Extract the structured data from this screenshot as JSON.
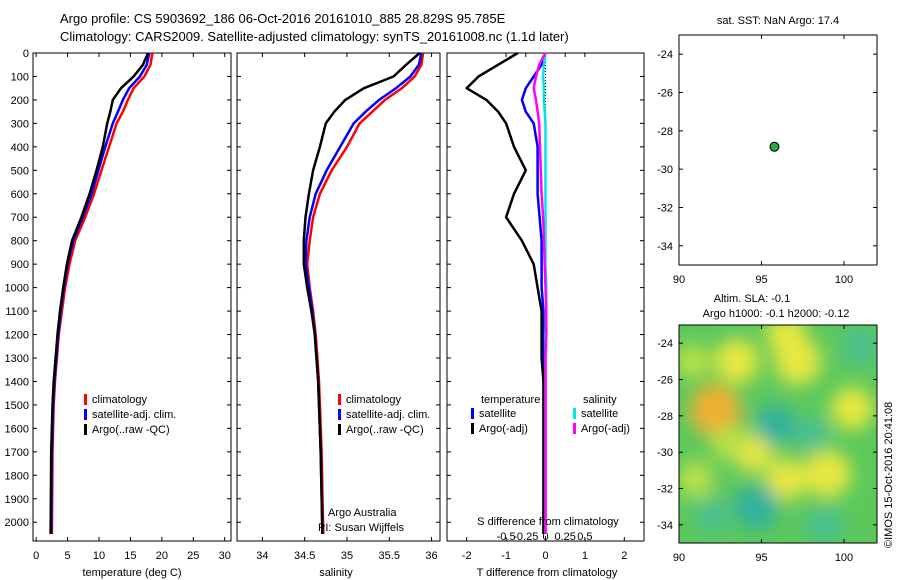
{
  "titles": {
    "line1": "Argo profile: CS 5903692_186 06-Oct-2016 20161010_885 28.829S 95.785E",
    "line2": "Climatology: CARS2009. Satellite-adjusted climatology: synTS_20161008.nc (1.1d later)"
  },
  "colors": {
    "climatology": "#ff0000",
    "satellite": "#0000ff",
    "argo": "#000000",
    "sat_salinity": "#00e5e5",
    "argo_salinity": "#ff00ff"
  },
  "chart_data": [
    {
      "type": "line",
      "id": "temperature",
      "xlabel": "temperature (deg C)",
      "xlim": [
        -0.5,
        31
      ],
      "xticks": [
        0,
        5,
        10,
        15,
        20,
        25,
        30
      ],
      "ylim": [
        0,
        2080
      ],
      "yticks": [
        0,
        100,
        200,
        300,
        400,
        500,
        600,
        700,
        800,
        900,
        1000,
        1100,
        1200,
        1300,
        1400,
        1500,
        1600,
        1700,
        1800,
        1900,
        2000
      ],
      "legend": [
        "climatology",
        "satellite-adj. clim.",
        "Argo(..raw -QC)"
      ],
      "legend_position": "lower-center",
      "series": [
        {
          "name": "climatology",
          "color": "#ff0000",
          "x": [
            18.5,
            18.2,
            17.2,
            15.5,
            14.6,
            13.8,
            12.8,
            11.6,
            10.4,
            9.2,
            7.8,
            6.2,
            5.3,
            4.6,
            4.1,
            3.6,
            3.3,
            3.0,
            2.8,
            2.6,
            2.5
          ],
          "y": [
            0,
            50,
            100,
            150,
            200,
            250,
            300,
            400,
            500,
            600,
            700,
            800,
            900,
            1000,
            1100,
            1200,
            1300,
            1400,
            1500,
            1700,
            2050
          ]
        },
        {
          "name": "satellite-adj. clim.",
          "color": "#0000ff",
          "x": [
            18.0,
            17.6,
            16.5,
            14.8,
            13.8,
            13.0,
            12.2,
            11.0,
            9.9,
            8.8,
            7.4,
            5.9,
            5.0,
            4.4,
            3.9,
            3.5,
            3.2,
            2.9,
            2.7,
            2.5,
            2.4
          ],
          "y": [
            0,
            50,
            100,
            150,
            200,
            250,
            300,
            400,
            500,
            600,
            700,
            800,
            900,
            1000,
            1100,
            1200,
            1300,
            1400,
            1500,
            1700,
            2050
          ]
        },
        {
          "name": "Argo(..raw -QC)",
          "color": "#000000",
          "x": [
            17.8,
            17.0,
            15.5,
            13.5,
            12.2,
            11.8,
            11.3,
            10.6,
            9.6,
            8.5,
            7.2,
            5.7,
            4.9,
            4.3,
            3.8,
            3.4,
            3.1,
            2.8,
            2.6,
            2.4,
            2.3
          ],
          "y": [
            0,
            50,
            100,
            150,
            200,
            250,
            300,
            400,
            500,
            600,
            700,
            800,
            900,
            1000,
            1100,
            1200,
            1300,
            1400,
            1500,
            1700,
            2050
          ]
        }
      ]
    },
    {
      "type": "line",
      "id": "salinity",
      "xlabel": "salinity",
      "xlim": [
        33.7,
        36.1
      ],
      "xticks": [
        34,
        34.5,
        35,
        35.5,
        36
      ],
      "ylim": [
        0,
        2080
      ],
      "legend": [
        "climatology",
        "satellite-adj. clim.",
        "Argo(..raw -QC)"
      ],
      "legend_position": "lower-center",
      "annotation": [
        "Argo Australia",
        "PI: Susan Wijffels"
      ],
      "series": [
        {
          "name": "climatology",
          "color": "#ff0000",
          "x": [
            35.9,
            35.88,
            35.8,
            35.65,
            35.45,
            35.3,
            35.15,
            35.0,
            34.82,
            34.68,
            34.6,
            34.56,
            34.53,
            34.56,
            34.6,
            34.63,
            34.65,
            34.67,
            34.68,
            34.7,
            34.72
          ],
          "y": [
            0,
            50,
            100,
            150,
            200,
            250,
            300,
            400,
            500,
            600,
            700,
            800,
            900,
            1000,
            1100,
            1200,
            1300,
            1400,
            1500,
            1700,
            2050
          ]
        },
        {
          "name": "satellite-adj. clim.",
          "color": "#0000ff",
          "x": [
            35.88,
            35.85,
            35.75,
            35.58,
            35.38,
            35.22,
            35.08,
            34.92,
            34.76,
            34.63,
            34.56,
            34.52,
            34.51,
            34.55,
            34.59,
            34.62,
            34.64,
            34.66,
            34.67,
            34.69,
            34.71
          ],
          "y": [
            0,
            50,
            100,
            150,
            200,
            250,
            300,
            400,
            500,
            600,
            700,
            800,
            900,
            1000,
            1100,
            1200,
            1300,
            1400,
            1500,
            1700,
            2050
          ]
        },
        {
          "name": "Argo(..raw -QC)",
          "color": "#000000",
          "x": [
            35.86,
            35.7,
            35.55,
            35.2,
            34.98,
            34.85,
            34.75,
            34.68,
            34.6,
            34.55,
            34.51,
            34.49,
            34.49,
            34.53,
            34.58,
            34.62,
            34.64,
            34.66,
            34.67,
            34.69,
            34.71
          ],
          "y": [
            0,
            50,
            100,
            150,
            200,
            250,
            300,
            400,
            500,
            600,
            700,
            800,
            900,
            1000,
            1100,
            1200,
            1300,
            1400,
            1500,
            1700,
            2050
          ]
        }
      ]
    },
    {
      "type": "line",
      "id": "differences",
      "xlabel": "T difference from climatology",
      "xlabel_top": "S difference from climatology",
      "xlim": [
        -2.5,
        2.5
      ],
      "xticks": [
        -2,
        -1,
        0,
        1,
        2
      ],
      "s_ticks": [
        -0.5,
        -0.25,
        0,
        0.25,
        0.5
      ],
      "s_tick_labels": [
        "-0.5",
        "-0.25",
        "0",
        "0.25",
        "0.5"
      ],
      "ylim": [
        0,
        2080
      ],
      "legend_temperature": {
        "title": "temperature",
        "items": [
          "satellite",
          "Argo(-adj)"
        ]
      },
      "legend_salinity": {
        "title": "salinity",
        "items": [
          "satellite",
          "Argo(-adj)"
        ]
      },
      "series": [
        {
          "name": "temperature satellite",
          "color": "#0000ff",
          "x": [
            0,
            -0.1,
            -0.3,
            -0.5,
            -0.6,
            -0.5,
            -0.3,
            -0.2,
            -0.2,
            -0.2,
            -0.15,
            -0.1,
            -0.1,
            -0.1,
            -0.05,
            -0.05,
            -0.05,
            -0.05,
            -0.05,
            -0.05,
            -0.05
          ],
          "y": [
            0,
            50,
            100,
            150,
            200,
            250,
            300,
            400,
            500,
            600,
            700,
            800,
            900,
            1000,
            1100,
            1200,
            1300,
            1400,
            1500,
            1700,
            2050
          ]
        },
        {
          "name": "temperature Argo(-adj)",
          "color": "#000000",
          "x": [
            -0.7,
            -1.2,
            -1.7,
            -2.0,
            -1.5,
            -1.2,
            -1.0,
            -0.8,
            -0.5,
            -0.8,
            -1.0,
            -0.6,
            -0.3,
            -0.2,
            -0.1,
            -0.1,
            -0.1,
            -0.05,
            -0.05,
            -0.05,
            -0.05
          ],
          "y": [
            0,
            50,
            100,
            150,
            200,
            250,
            300,
            400,
            500,
            600,
            700,
            800,
            900,
            1000,
            1100,
            1200,
            1300,
            1400,
            1500,
            1700,
            2050
          ]
        },
        {
          "name": "salinity satellite",
          "color": "#00e5e5",
          "x": [
            0.0,
            -0.02,
            -0.03,
            -0.02,
            -0.02,
            -0.01,
            0.0,
            0.0,
            0.0,
            0.0,
            0.0,
            0.0,
            0.0,
            0.01,
            0.01,
            0.0,
            0.0,
            0.0,
            0.0,
            0.0,
            0.0
          ],
          "y": [
            0,
            50,
            100,
            150,
            200,
            250,
            300,
            400,
            500,
            600,
            700,
            800,
            900,
            1000,
            1100,
            1200,
            1300,
            1400,
            1500,
            1700,
            2050
          ]
        },
        {
          "name": "salinity Argo(-adj)",
          "color": "#ff00ff",
          "x": [
            0.0,
            -0.08,
            -0.12,
            -0.15,
            -0.12,
            -0.1,
            -0.08,
            -0.07,
            -0.06,
            -0.05,
            -0.03,
            -0.02,
            -0.01,
            0.0,
            0.01,
            0.01,
            0.0,
            0.0,
            0.0,
            0.0,
            0.0
          ],
          "y": [
            0,
            50,
            100,
            150,
            200,
            250,
            300,
            400,
            500,
            600,
            700,
            800,
            900,
            1000,
            1100,
            1200,
            1300,
            1400,
            1500,
            1700,
            2050
          ]
        }
      ]
    },
    {
      "type": "scatter",
      "id": "sst-map",
      "title": "sat. SST: NaN Argo: 17.4",
      "xlim": [
        90,
        102
      ],
      "ylim": [
        -35,
        -23
      ],
      "xticks": [
        90,
        95,
        100
      ],
      "yticks": [
        -24,
        -26,
        -28,
        -30,
        -32,
        -34
      ],
      "points": [
        {
          "x": 95.785,
          "y": -28.829,
          "color": "#22aa44"
        }
      ]
    },
    {
      "type": "heatmap",
      "id": "sla-map",
      "title_line1": "Altim. SLA: -0.1",
      "title_line2": "Argo h1000: -0.1 h2000: -0.12",
      "xlim": [
        90,
        102
      ],
      "ylim": [
        -35,
        -23
      ],
      "xticks": [
        90,
        95,
        100
      ],
      "yticks": [
        -24,
        -26,
        -28,
        -30,
        -32,
        -34
      ],
      "blobs": [
        {
          "x": 92.2,
          "y": -27.7,
          "v": 1.0
        },
        {
          "x": 93.5,
          "y": -25.0,
          "v": 0.7
        },
        {
          "x": 97.2,
          "y": -25.0,
          "v": 0.8
        },
        {
          "x": 99.0,
          "y": -31.2,
          "v": 0.8
        },
        {
          "x": 96.5,
          "y": -31.5,
          "v": 0.55
        },
        {
          "x": 100.5,
          "y": -27.6,
          "v": 0.6
        },
        {
          "x": 94.5,
          "y": -30.0,
          "v": 0.5
        },
        {
          "x": 91.0,
          "y": -31.5,
          "v": 0.4
        },
        {
          "x": 95.8,
          "y": -28.5,
          "v": -0.5
        },
        {
          "x": 92.0,
          "y": -33.5,
          "v": -0.3
        },
        {
          "x": 98.8,
          "y": -34.0,
          "v": -0.4
        },
        {
          "x": 94.7,
          "y": -33.0,
          "v": -0.7
        },
        {
          "x": 101.0,
          "y": -24.2,
          "v": -0.4
        },
        {
          "x": 96.5,
          "y": -23.5,
          "v": 0.5
        },
        {
          "x": 90.8,
          "y": -25.0,
          "v": 0.3
        },
        {
          "x": 98.0,
          "y": -29.0,
          "v": -0.3
        },
        {
          "x": 93.0,
          "y": -29.5,
          "v": 0.3
        }
      ]
    }
  ],
  "watermark": "©IMOS 15-Oct-2016 20:41:08"
}
